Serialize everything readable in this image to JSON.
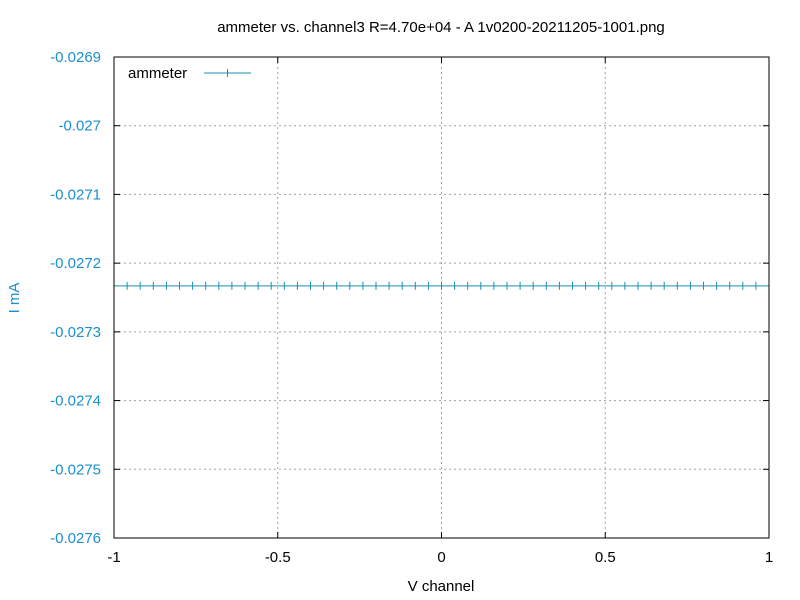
{
  "chart_data": {
    "type": "line",
    "title": "ammeter vs. channel3 R=4.70e+04 - A 1v0200-20211205-1001.png",
    "xlabel": "V channel",
    "ylabel": "I mA",
    "xlim": [
      -1,
      1
    ],
    "ylim": [
      -0.0276,
      -0.0269
    ],
    "x_ticks": [
      -1,
      -0.5,
      0,
      0.5,
      1
    ],
    "x_tick_labels": [
      "-1",
      "-0.5",
      "0",
      "0.5",
      "1"
    ],
    "y_ticks": [
      -0.0269,
      -0.027,
      -0.0271,
      -0.0272,
      -0.0273,
      -0.0274,
      -0.0275,
      -0.0276
    ],
    "y_tick_labels": [
      "-0.0269",
      "-0.027",
      "-0.0271",
      "-0.0272",
      "-0.0273",
      "-0.0274",
      "-0.0275",
      "-0.0276"
    ],
    "grid": true,
    "legend_position": "top-left",
    "colors": {
      "series": "#1a8fb3",
      "y_axis_text": "#1a8fd1",
      "text": "#000000",
      "grid": "#a0a0a0"
    },
    "series": [
      {
        "name": "ammeter",
        "x": [
          -1,
          -0.96,
          -0.92,
          -0.88,
          -0.84,
          -0.8,
          -0.76,
          -0.72,
          -0.68,
          -0.64,
          -0.6,
          -0.56,
          -0.52,
          -0.48,
          -0.44,
          -0.4,
          -0.36,
          -0.32,
          -0.28,
          -0.24,
          -0.2,
          -0.16,
          -0.12,
          -0.08,
          -0.04,
          0,
          0.04,
          0.08,
          0.12,
          0.16,
          0.2,
          0.24,
          0.28,
          0.32,
          0.36,
          0.4,
          0.44,
          0.48,
          0.52,
          0.56,
          0.6,
          0.64,
          0.68,
          0.72,
          0.76,
          0.8,
          0.84,
          0.88,
          0.92,
          0.96,
          1
        ],
        "values": [
          -0.027233,
          -0.027233,
          -0.027233,
          -0.027233,
          -0.027233,
          -0.027233,
          -0.027233,
          -0.027233,
          -0.027233,
          -0.027233,
          -0.027233,
          -0.027233,
          -0.027233,
          -0.027233,
          -0.027233,
          -0.027233,
          -0.027233,
          -0.027233,
          -0.027233,
          -0.027233,
          -0.027233,
          -0.027233,
          -0.027233,
          -0.027233,
          -0.027233,
          -0.027233,
          -0.027233,
          -0.027233,
          -0.027233,
          -0.027233,
          -0.027233,
          -0.027233,
          -0.027233,
          -0.027233,
          -0.027233,
          -0.027233,
          -0.027233,
          -0.027233,
          -0.027233,
          -0.027233,
          -0.027233,
          -0.027233,
          -0.027233,
          -0.027233,
          -0.027233,
          -0.027233,
          -0.027233,
          -0.027233,
          -0.027233,
          -0.027233,
          -0.027233
        ]
      }
    ]
  }
}
